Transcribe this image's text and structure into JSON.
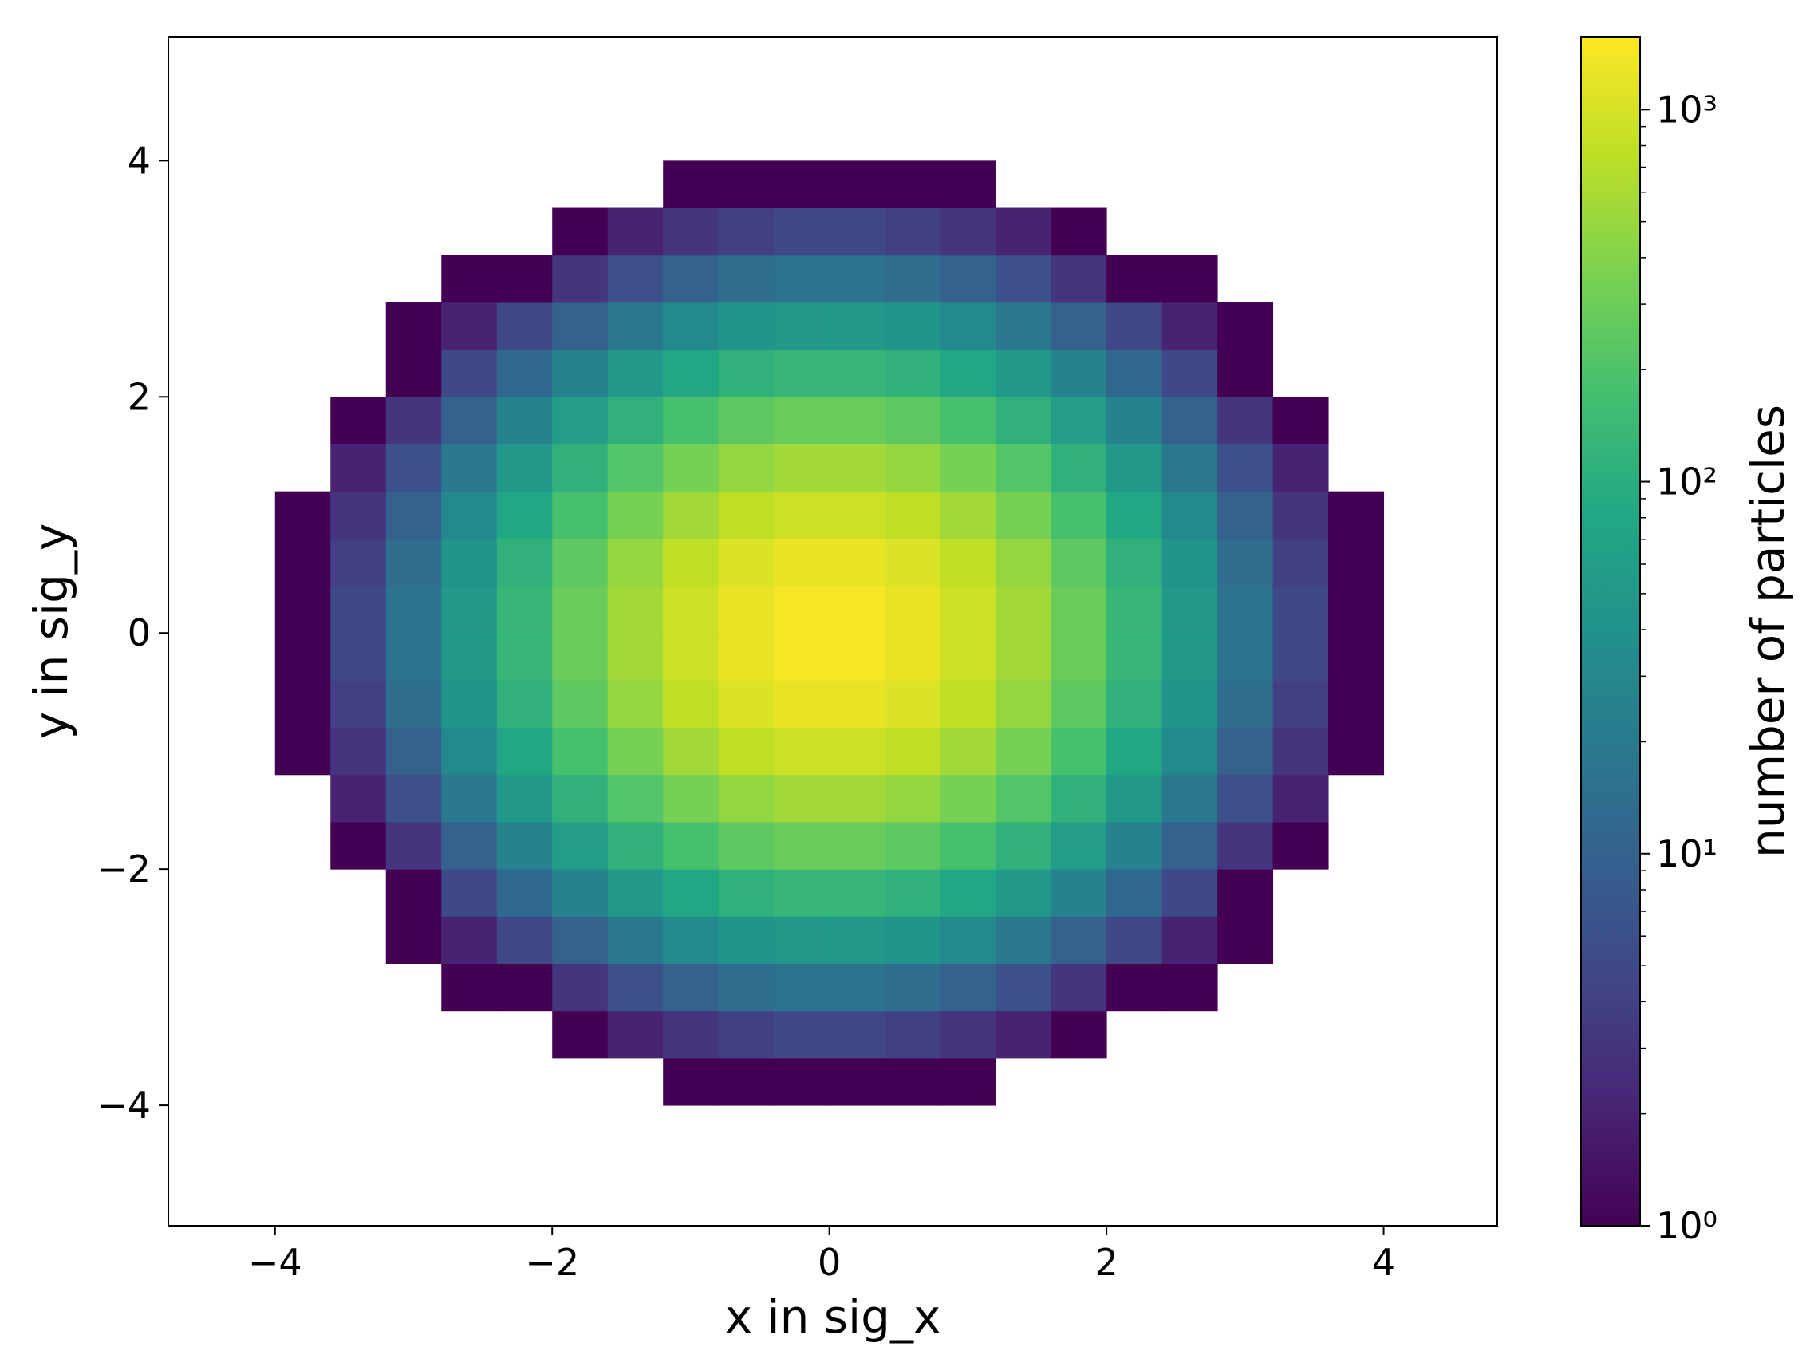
{
  "chart_data": {
    "type": "hist2d",
    "xlabel": "x in sig_x",
    "ylabel": "y in sig_y",
    "colorbar_label": "number of particles",
    "colormap": "viridis",
    "color_scale": "log",
    "xlim": [
      -4.77,
      4.82
    ],
    "ylim": [
      -5.02,
      5.05
    ],
    "xticks": [
      {
        "value": -4,
        "label": "−4"
      },
      {
        "value": -2,
        "label": "−2"
      },
      0,
      2,
      4
    ],
    "yticks": [
      {
        "value": -4,
        "label": "−4"
      },
      {
        "value": -2,
        "label": "−2"
      },
      0,
      2,
      4
    ],
    "clim": [
      1,
      1570
    ],
    "cticks": [
      {
        "value": 1,
        "label": "10⁰"
      },
      {
        "value": 10,
        "label": "10¹"
      },
      {
        "value": 100,
        "label": "10²"
      },
      {
        "value": 1000,
        "label": "10³"
      }
    ],
    "xbins": [
      -4.8,
      -4.4,
      -4.0,
      -3.6,
      -3.2,
      -2.8,
      -2.4,
      -2.0,
      -1.6,
      -1.2,
      -0.8,
      -0.4,
      0,
      0.4,
      0.8,
      1.2,
      1.6,
      2.0,
      2.4,
      2.8,
      3.2,
      3.6,
      4.0,
      4.4,
      4.8
    ],
    "ybins": [
      -4.8,
      -4.4,
      -4.0,
      -3.6,
      -3.2,
      -2.8,
      -2.4,
      -2.0,
      -1.6,
      -1.2,
      -0.8,
      -0.4,
      0,
      0.4,
      0.8,
      1.2,
      1.6,
      2.0,
      2.4,
      2.8,
      3.2,
      3.6,
      4.0,
      4.4,
      4.8
    ],
    "values": [
      [
        null,
        null,
        null,
        null,
        null,
        null,
        null,
        null,
        null,
        null,
        null,
        null,
        null,
        null,
        null,
        null,
        null,
        null,
        null,
        null,
        null,
        null,
        null,
        null
      ],
      [
        null,
        null,
        null,
        null,
        null,
        null,
        null,
        null,
        null,
        null,
        null,
        null,
        null,
        null,
        null,
        null,
        null,
        null,
        null,
        null,
        null,
        null,
        null,
        null
      ],
      [
        null,
        null,
        null,
        null,
        null,
        null,
        null,
        null,
        null,
        1,
        1,
        1,
        1,
        1,
        1,
        null,
        null,
        null,
        null,
        null,
        null,
        null,
        null,
        null
      ],
      [
        null,
        null,
        null,
        null,
        null,
        null,
        null,
        1,
        2,
        3,
        4,
        5,
        5,
        4,
        3,
        2,
        1,
        null,
        null,
        null,
        null,
        null,
        null,
        null
      ],
      [
        null,
        null,
        null,
        null,
        null,
        1,
        1,
        3,
        6,
        10,
        14,
        16,
        16,
        14,
        10,
        6,
        3,
        1,
        1,
        null,
        null,
        null,
        null,
        null
      ],
      [
        null,
        null,
        null,
        null,
        1,
        2,
        5,
        10,
        19,
        31,
        43,
        50,
        50,
        43,
        31,
        19,
        10,
        5,
        2,
        1,
        null,
        null,
        null,
        null
      ],
      [
        null,
        null,
        null,
        null,
        1,
        5,
        12,
        26,
        50,
        81,
        111,
        131,
        131,
        111,
        81,
        50,
        26,
        12,
        5,
        1,
        null,
        null,
        null,
        null
      ],
      [
        null,
        null,
        null,
        1,
        3,
        10,
        26,
        59,
        111,
        180,
        248,
        291,
        291,
        248,
        180,
        111,
        59,
        26,
        10,
        3,
        1,
        null,
        null,
        null
      ],
      [
        null,
        null,
        null,
        2,
        6,
        19,
        50,
        111,
        211,
        341,
        470,
        551,
        551,
        470,
        341,
        211,
        111,
        50,
        19,
        6,
        2,
        null,
        null,
        null
      ],
      [
        null,
        null,
        1,
        3,
        10,
        31,
        81,
        180,
        341,
        553,
        760,
        892,
        892,
        760,
        553,
        341,
        180,
        81,
        31,
        10,
        3,
        1,
        null,
        null
      ],
      [
        null,
        null,
        1,
        4,
        14,
        43,
        111,
        248,
        470,
        760,
        1046,
        1228,
        1228,
        1046,
        760,
        470,
        248,
        111,
        43,
        14,
        4,
        1,
        null,
        null
      ],
      [
        null,
        null,
        1,
        5,
        16,
        50,
        131,
        291,
        551,
        892,
        1227,
        1441,
        1441,
        1227,
        892,
        551,
        291,
        131,
        50,
        16,
        5,
        1,
        null,
        null
      ],
      [
        null,
        null,
        1,
        5,
        16,
        50,
        131,
        291,
        551,
        892,
        1227,
        1441,
        1441,
        1227,
        892,
        551,
        291,
        131,
        50,
        16,
        5,
        1,
        null,
        null
      ],
      [
        null,
        null,
        1,
        4,
        14,
        43,
        111,
        248,
        470,
        760,
        1046,
        1228,
        1228,
        1046,
        760,
        470,
        248,
        111,
        43,
        14,
        4,
        1,
        null,
        null
      ],
      [
        null,
        null,
        1,
        3,
        10,
        31,
        81,
        180,
        341,
        553,
        760,
        892,
        892,
        760,
        553,
        341,
        180,
        81,
        31,
        10,
        3,
        1,
        null,
        null
      ],
      [
        null,
        null,
        null,
        2,
        6,
        19,
        50,
        111,
        211,
        341,
        470,
        551,
        551,
        470,
        341,
        211,
        111,
        50,
        19,
        6,
        2,
        null,
        null,
        null
      ],
      [
        null,
        null,
        null,
        1,
        3,
        10,
        26,
        59,
        111,
        180,
        248,
        291,
        291,
        248,
        180,
        111,
        59,
        26,
        10,
        3,
        1,
        null,
        null,
        null
      ],
      [
        null,
        null,
        null,
        null,
        1,
        5,
        12,
        26,
        50,
        81,
        111,
        131,
        131,
        111,
        81,
        50,
        26,
        12,
        5,
        1,
        null,
        null,
        null,
        null
      ],
      [
        null,
        null,
        null,
        null,
        1,
        2,
        5,
        10,
        19,
        31,
        43,
        50,
        50,
        43,
        31,
        19,
        10,
        5,
        2,
        1,
        null,
        null,
        null,
        null
      ],
      [
        null,
        null,
        null,
        null,
        null,
        1,
        1,
        3,
        6,
        10,
        14,
        16,
        16,
        14,
        10,
        6,
        3,
        1,
        1,
        null,
        null,
        null,
        null,
        null
      ],
      [
        null,
        null,
        null,
        null,
        null,
        null,
        null,
        1,
        2,
        3,
        4,
        5,
        5,
        4,
        3,
        2,
        1,
        null,
        null,
        null,
        null,
        null,
        null,
        null
      ],
      [
        null,
        null,
        null,
        null,
        null,
        null,
        null,
        null,
        null,
        1,
        1,
        1,
        1,
        1,
        1,
        null,
        null,
        null,
        null,
        null,
        null,
        null,
        null,
        null
      ],
      [
        null,
        null,
        null,
        null,
        null,
        null,
        null,
        null,
        null,
        null,
        null,
        null,
        null,
        null,
        null,
        null,
        null,
        null,
        null,
        null,
        null,
        null,
        null,
        null
      ],
      [
        null,
        null,
        null,
        null,
        null,
        null,
        null,
        null,
        null,
        null,
        null,
        null,
        null,
        null,
        null,
        null,
        null,
        null,
        null,
        null,
        null,
        null,
        null,
        null
      ]
    ]
  }
}
